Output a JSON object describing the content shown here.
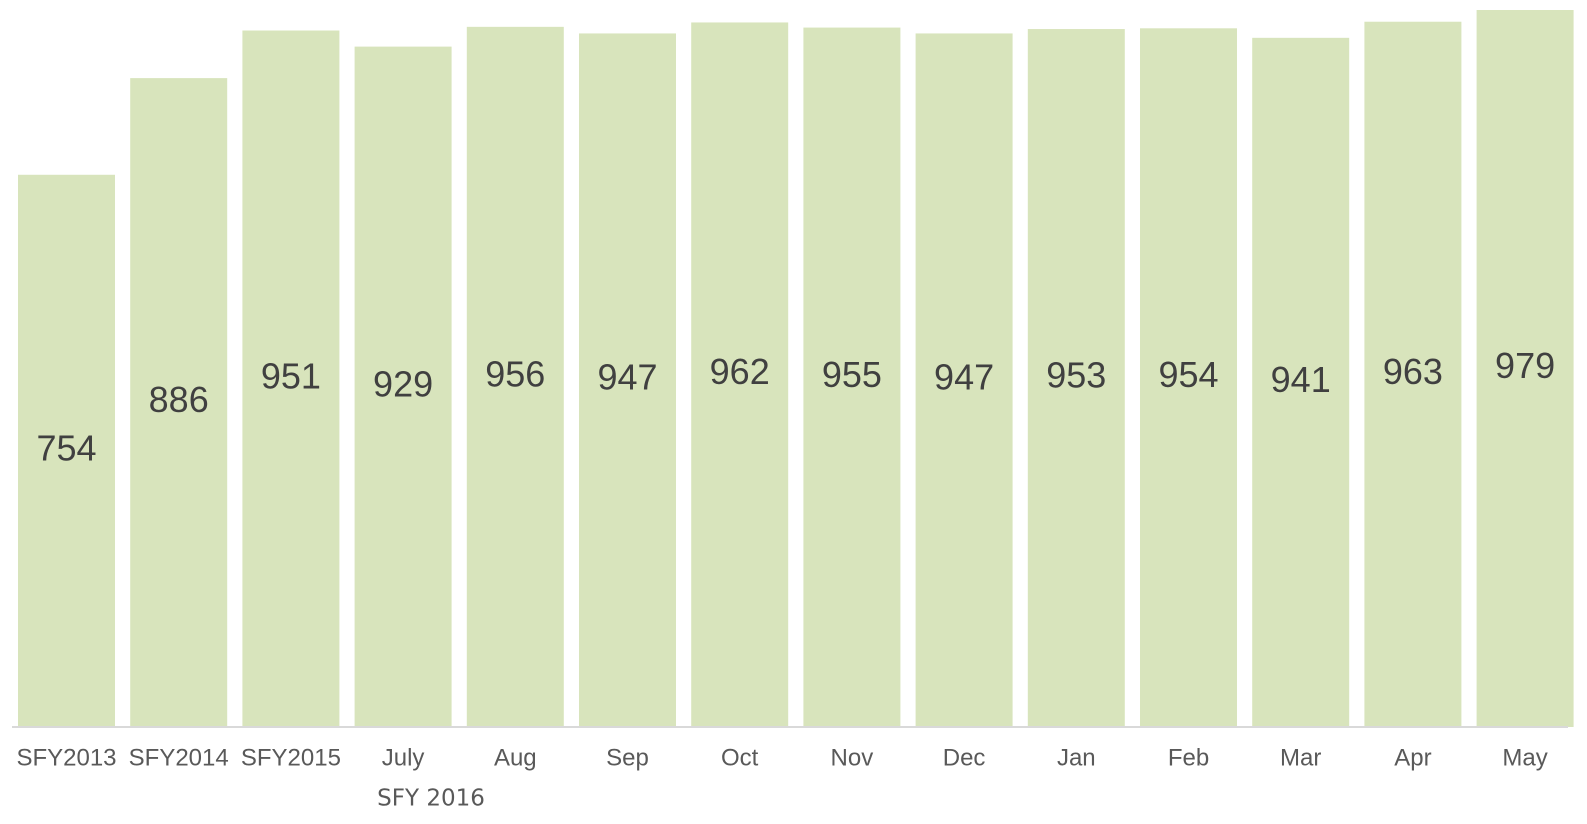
{
  "chart_data": {
    "type": "bar",
    "categories": [
      "SFY2013",
      "SFY2014",
      "SFY2015",
      "July",
      "Aug",
      "Sep",
      "Oct",
      "Nov",
      "Dec",
      "Jan",
      "Feb",
      "Mar",
      "Apr",
      "May"
    ],
    "values": [
      754,
      886,
      951,
      929,
      956,
      947,
      962,
      955,
      947,
      953,
      954,
      941,
      963,
      979
    ],
    "color": "#d8e4bc",
    "annotation": "SFY 2016"
  }
}
